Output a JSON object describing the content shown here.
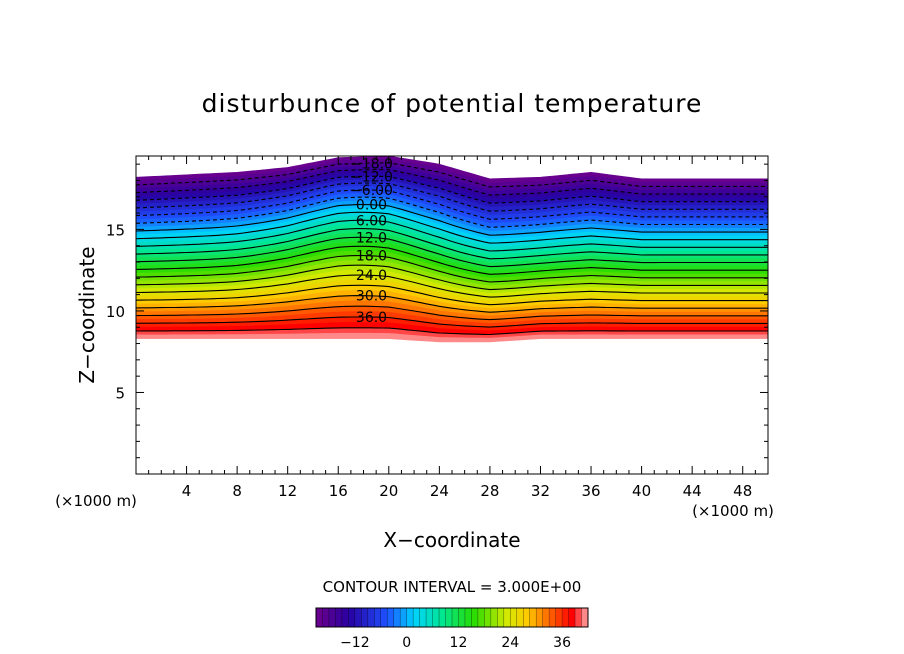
{
  "chart_data": {
    "type": "contour",
    "title": "disturbunce of potential temperature",
    "xlabel": "X−coordinate",
    "ylabel": "Z−coordinate",
    "x_unit_left": "(×1000 m)",
    "x_unit_right": "(×1000 m)",
    "xlim": [
      0,
      50
    ],
    "ylim": [
      0,
      19.5
    ],
    "x_ticks": [
      "4",
      "8",
      "12",
      "16",
      "20",
      "24",
      "28",
      "32",
      "36",
      "40",
      "44",
      "48"
    ],
    "y_ticks": [
      "5",
      "10",
      "15"
    ],
    "x_tick_values": [
      4,
      8,
      12,
      16,
      20,
      24,
      28,
      32,
      36,
      40,
      44,
      48
    ],
    "y_tick_values": [
      5,
      10,
      15
    ],
    "contour_interval_label": "CONTOUR INTERVAL = 3.000E+00",
    "contour_levels": [
      -18,
      -15,
      -12,
      -9,
      -6,
      -3,
      0,
      3,
      6,
      9,
      12,
      15,
      18,
      21,
      24,
      27,
      30,
      33,
      36,
      39
    ],
    "contour_labels": [
      {
        "text": "−18.0",
        "level": -18
      },
      {
        "text": "−12.0",
        "level": -12
      },
      {
        "text": "−6.00",
        "level": -6
      },
      {
        "text": "0.00",
        "level": 0
      },
      {
        "text": "6.00",
        "level": 6
      },
      {
        "text": "12.0",
        "level": 12
      },
      {
        "text": "18.0",
        "level": 18
      },
      {
        "text": "24.0",
        "level": 24
      },
      {
        "text": "30.0",
        "level": 30
      },
      {
        "text": "36.0",
        "level": 36
      }
    ],
    "field_top_profile": [
      [
        0,
        18.2
      ],
      [
        8,
        18.5
      ],
      [
        12,
        18.8
      ],
      [
        16,
        19.4
      ],
      [
        20,
        19.5
      ],
      [
        24,
        19.0
      ],
      [
        28,
        18.1
      ],
      [
        32,
        18.2
      ],
      [
        36,
        18.5
      ],
      [
        40,
        18.1
      ],
      [
        50,
        18.1
      ]
    ],
    "field_bottom_profile": [
      [
        0,
        8.3
      ],
      [
        20,
        8.3
      ],
      [
        24,
        8.1
      ],
      [
        28,
        8.1
      ],
      [
        32,
        8.3
      ],
      [
        50,
        8.3
      ]
    ],
    "colorbar": {
      "min": -21,
      "max": 42,
      "tick_labels": [
        "−12",
        "0",
        "12",
        "24",
        "36"
      ],
      "tick_values": [
        -12,
        0,
        12,
        24,
        36
      ]
    }
  }
}
